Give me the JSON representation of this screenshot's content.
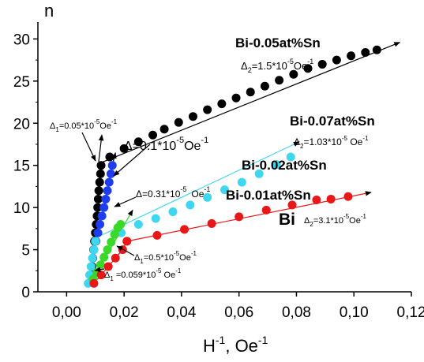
{
  "chart_data": {
    "type": "scatter",
    "title": "",
    "xlabel_parts": [
      "H",
      "-1",
      ", Oe",
      "-1"
    ],
    "ylabel": "n",
    "xlim": [
      -0.01,
      0.12
    ],
    "ylim": [
      0,
      32
    ],
    "xticks": [
      0.0,
      0.02,
      0.04,
      0.06,
      0.08,
      0.1,
      0.12
    ],
    "xtick_labels": [
      "0,00",
      "0,02",
      "0,04",
      "0,06",
      "0,08",
      "0,10",
      "0,12"
    ],
    "yticks": [
      0,
      5,
      10,
      15,
      20,
      25,
      30
    ],
    "ytick_labels": [
      "0",
      "5",
      "10",
      "15",
      "20",
      "25",
      "30"
    ],
    "grid": false,
    "series": [
      {
        "color": "#000000",
        "steep": {
          "x": [
            0.0085,
            0.0088,
            0.0091,
            0.0094,
            0.0097,
            0.01,
            0.0103,
            0.0106,
            0.0108,
            0.011,
            0.0112,
            0.0115,
            0.0118,
            0.012
          ],
          "y": [
            2,
            3,
            4,
            5,
            6,
            7,
            8,
            9,
            10,
            11,
            12,
            13,
            14,
            15
          ]
        },
        "points": {
          "x": [
            0.015,
            0.02,
            0.025,
            0.03,
            0.034,
            0.039,
            0.044,
            0.049,
            0.054,
            0.059,
            0.064,
            0.069,
            0.074,
            0.079,
            0.084,
            0.089,
            0.094,
            0.099,
            0.104,
            0.108
          ],
          "y": [
            16,
            17,
            17.8,
            18.6,
            19.3,
            20.1,
            20.8,
            21.6,
            22.3,
            23,
            23.7,
            24.4,
            25.1,
            25.8,
            26.5,
            27,
            27.5,
            28,
            28.4,
            28.7
          ]
        },
        "line": {
          "x0": 0.0125,
          "y0": 15.4,
          "x1": 0.116,
          "y1": 29.6
        }
      },
      {
        "color": "#1e3df0",
        "steep": {
          "x": [
            0.0095,
            0.0102,
            0.0109,
            0.0116,
            0.0123,
            0.013,
            0.0136,
            0.0142,
            0.0148,
            0.0154,
            0.0159
          ],
          "y": [
            5,
            6,
            7,
            8,
            9,
            10,
            11,
            12,
            13,
            14,
            15
          ]
        },
        "arrow": {
          "x0": 0.0159,
          "y0": 15,
          "x1": 0.017,
          "y1": 16.5
        }
      },
      {
        "color": "#3fd7f0",
        "steep": {
          "x": [
            0.0075,
            0.008,
            0.0085,
            0.009,
            0.0095,
            0.01
          ],
          "y": [
            1,
            2,
            3,
            4,
            5,
            6
          ]
        },
        "points": {
          "x": [
            0.019,
            0.025,
            0.031,
            0.037,
            0.043,
            0.049,
            0.055,
            0.061,
            0.067,
            0.073,
            0.078
          ],
          "y": [
            7,
            8,
            8.7,
            9.5,
            10.3,
            11.2,
            12.1,
            13,
            14,
            15.1,
            16
          ]
        },
        "line": {
          "x0": 0.012,
          "y0": 6.7,
          "x1": 0.081,
          "y1": 17.8
        }
      },
      {
        "color": "#39d829",
        "steep": {
          "x": [
            0.0092,
            0.0105,
            0.0118,
            0.013,
            0.0142,
            0.0155,
            0.0167,
            0.0178,
            0.0188
          ],
          "y": [
            1.5,
            2.3,
            3.2,
            4.1,
            5,
            5.9,
            6.8,
            7.6,
            8
          ]
        },
        "line": {
          "x0": 0.0092,
          "y0": 1.5,
          "x1": 0.023,
          "y1": 9.7
        }
      },
      {
        "color": "#e81818",
        "steep": {
          "x": [
            0.0095,
            0.012,
            0.0145,
            0.017,
            0.0195,
            0.021
          ],
          "y": [
            1,
            2,
            3,
            4,
            5,
            6
          ]
        },
        "points": {
          "x": [
            0.021,
            0.0315,
            0.041,
            0.0505,
            0.06,
            0.0695,
            0.0785,
            0.087,
            0.092,
            0.098
          ],
          "y": [
            6,
            6.7,
            7.4,
            8.1,
            8.9,
            9.7,
            10.3,
            10.9,
            11,
            11.3
          ]
        },
        "line": {
          "x0": 0.021,
          "y0": 6,
          "x1": 0.106,
          "y1": 11.8
        }
      }
    ],
    "annotations": {
      "label_005": "Bi-0.05at%Sn",
      "label_007": "Bi-0.07at%Sn",
      "label_002": "Bi-0.02at%Sn",
      "label_001": "Bi-0.01at%Sn",
      "label_bi": "Bi",
      "d2_005": {
        "a": "Δ",
        "b": "2",
        "c": "=1.5*10",
        "d": "-5",
        "e": "Oe",
        "f": "-1"
      },
      "d1_005": {
        "a": "Δ",
        "b": "1",
        "c": "=0.05*10",
        "d": "-5",
        "e": "Oe",
        "f": "-1"
      },
      "d_blue": {
        "a": "Δ=0.1*10",
        "b": "-5",
        "c": "Oe",
        "d": "-1"
      },
      "d2_007": {
        "a": "Δ",
        "b": "2",
        "c": "=1.03*10",
        "d": "-5",
        "e": " Oe",
        "f": "-1"
      },
      "d_green": {
        "a": "Δ=0.31*10",
        "b": "-5",
        "c": "Oe",
        "d": "-1"
      },
      "d2_bi": {
        "a": "Δ",
        "b": "2",
        "c": "=3.1*10",
        "d": "-5",
        "e": "Oe",
        "f": "-1"
      },
      "d1_red": {
        "a": "Δ",
        "b": "1",
        "c": "=0.5*10",
        "d": "-5",
        "e": "Oe",
        "f": "-1"
      },
      "d1_cyan": {
        "a": "Δ",
        "b": "1",
        "c": " =0.059*10",
        "d": "-5",
        "e": " Oe",
        "f": "-1"
      }
    }
  }
}
